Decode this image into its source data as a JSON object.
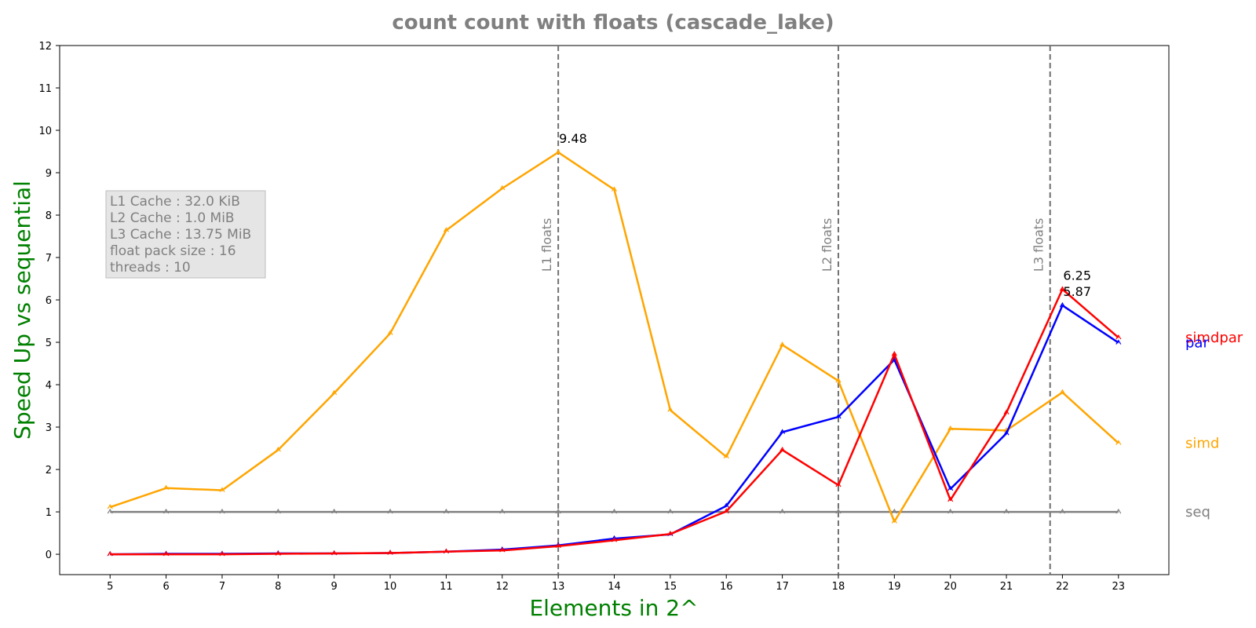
{
  "chart_data": {
    "type": "line",
    "title": "count count with floats  (cascade_lake)",
    "xlabel": "Elements in 2^",
    "ylabel": "Speed Up vs sequential",
    "xlim": [
      4.1,
      23.9
    ],
    "ylim": [
      -0.48,
      12.0
    ],
    "xticks": [
      5,
      6,
      7,
      8,
      9,
      10,
      11,
      12,
      13,
      14,
      15,
      16,
      17,
      18,
      19,
      20,
      21,
      22,
      23
    ],
    "yticks": [
      0,
      1,
      2,
      3,
      4,
      5,
      6,
      7,
      8,
      9,
      10,
      11,
      12
    ],
    "grid": false,
    "x": [
      5,
      6,
      7,
      8,
      9,
      10,
      11,
      12,
      13,
      14,
      15,
      16,
      17,
      18,
      19,
      20,
      21,
      22,
      23
    ],
    "series": [
      {
        "name": "seq",
        "color": "#808080",
        "values": [
          1,
          1,
          1,
          1,
          1,
          1,
          1,
          1,
          1,
          1,
          1,
          1,
          1,
          1,
          1,
          1,
          1,
          1,
          1
        ]
      },
      {
        "name": "simd",
        "color": "#FFA500",
        "values": [
          1.11,
          1.56,
          1.51,
          2.46,
          3.8,
          5.21,
          7.64,
          8.63,
          9.48,
          8.6,
          3.4,
          2.3,
          4.94,
          4.09,
          0.77,
          2.96,
          2.92,
          3.82,
          2.62
        ]
      },
      {
        "name": "par",
        "color": "#0000FF",
        "values": [
          0.0,
          0.01,
          0.01,
          0.02,
          0.02,
          0.03,
          0.06,
          0.11,
          0.21,
          0.37,
          0.47,
          1.14,
          2.88,
          3.24,
          4.59,
          1.54,
          2.85,
          5.87,
          4.99
        ]
      },
      {
        "name": "simdpar",
        "color": "#FF0000",
        "values": [
          0.0,
          0.0,
          0.0,
          0.01,
          0.02,
          0.03,
          0.06,
          0.09,
          0.19,
          0.33,
          0.48,
          1.01,
          2.46,
          1.63,
          4.72,
          1.28,
          3.34,
          6.25,
          5.11
        ]
      }
    ],
    "vlines": [
      {
        "x": 13,
        "label": "L1 floats"
      },
      {
        "x": 18,
        "label": "L2 floats"
      },
      {
        "x": 21.78,
        "label": "L3 floats"
      }
    ],
    "annotations": [
      {
        "x": 13,
        "y": 9.48,
        "text": "9.48"
      },
      {
        "x": 22,
        "y": 6.25,
        "text": "6.25"
      },
      {
        "x": 22,
        "y": 5.87,
        "text": "5.87"
      }
    ],
    "info_box": [
      "L1 Cache : 32.0 KiB",
      "L2 Cache : 1.0 MiB",
      "L3 Cache : 13.75 MiB",
      "float pack size : 16",
      "threads : 10"
    ],
    "series_labels": [
      {
        "text": "simdpar",
        "color": "#FF0000",
        "y": 5.11
      },
      {
        "text": "par",
        "color": "#0000FF",
        "y": 4.99
      },
      {
        "text": "simd",
        "color": "#FFA500",
        "y": 2.62
      },
      {
        "text": "seq",
        "color": "#808080",
        "y": 1.0
      }
    ]
  }
}
